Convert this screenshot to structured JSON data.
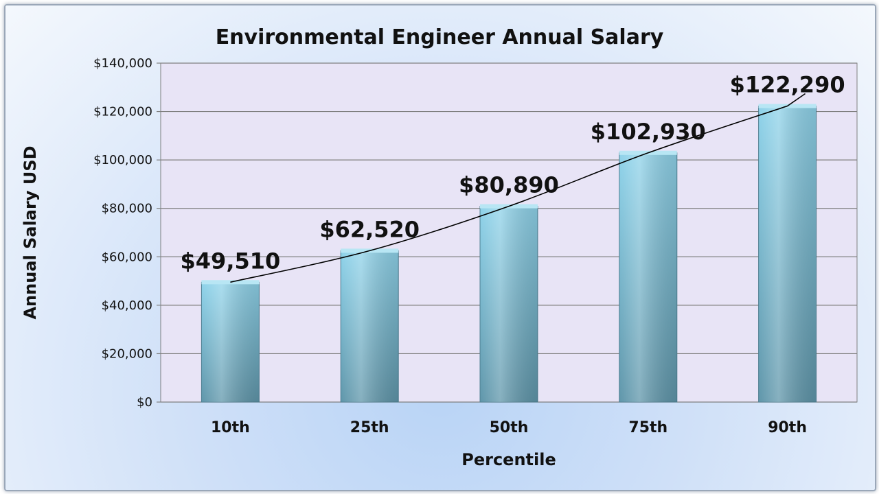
{
  "chart_data": {
    "type": "bar",
    "title": "Environmental Engineer Annual Salary",
    "xlabel": "Percentile",
    "ylabel": "Annual Salary USD",
    "categories": [
      "10th",
      "25th",
      "50th",
      "75th",
      "90th"
    ],
    "values": [
      49510,
      62520,
      80890,
      102930,
      122290
    ],
    "data_labels": [
      "$49,510",
      "$62,520",
      "$80,890",
      "$102,930",
      "$122,290"
    ],
    "ylim": [
      0,
      140000
    ],
    "y_ticks": [
      0,
      20000,
      40000,
      60000,
      80000,
      100000,
      120000,
      140000
    ],
    "y_tick_labels": [
      "$0",
      "$20,000",
      "$40,000",
      "$60,000",
      "$80,000",
      "$100,000",
      "$120,000",
      "$140,000"
    ],
    "trendline": true,
    "grid": true,
    "legend": false,
    "colors": {
      "bar_top": "#8fd3ea",
      "bar_bottom": "#5f96aa",
      "plot_bg": "#e8e4f6",
      "grid": "#7f7f7f",
      "trendline": "#000000"
    }
  }
}
